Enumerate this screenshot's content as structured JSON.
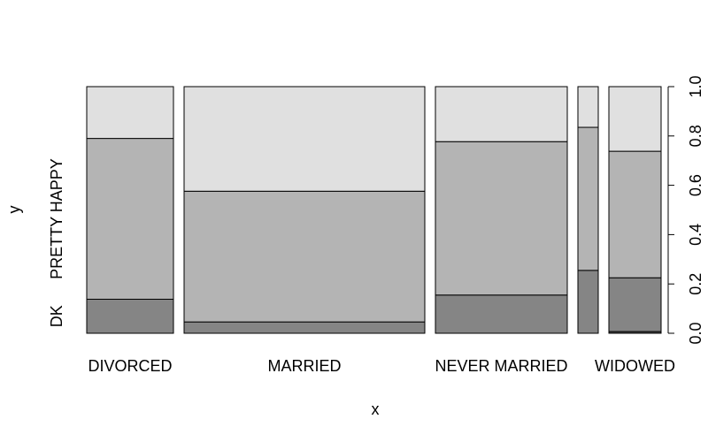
{
  "chart_data": {
    "type": "mosaic",
    "xlabel": "x",
    "ylabel": "y",
    "x_categories": [
      "DIVORCED",
      "MARRIED",
      "NEVER MARRIED",
      "",
      "WIDOWED"
    ],
    "x_widths": [
      98,
      272,
      149,
      23,
      59
    ],
    "y_tick_labels_left": [
      "DK",
      "PRETTY HAPPY"
    ],
    "y_ticks_right": [
      "0.0",
      "0.2",
      "0.4",
      "0.6",
      "0.8",
      "1.0"
    ],
    "ylim": [
      0,
      1
    ],
    "columns": [
      {
        "category": "DIVORCED",
        "segments": [
          0.138,
          0.652,
          0.21
        ]
      },
      {
        "category": "MARRIED",
        "segments": [
          0.046,
          0.53,
          0.424
        ]
      },
      {
        "category": "NEVER MARRIED",
        "segments": [
          0.155,
          0.622,
          0.223
        ]
      },
      {
        "category": "",
        "segments": [
          0.255,
          0.58,
          0.165
        ]
      },
      {
        "category": "WIDOWED",
        "segments": [
          0.007,
          0.218,
          0.513,
          0.262
        ]
      }
    ],
    "segment_colors": {
      "3": [
        "#858585",
        "#b4b4b4",
        "#e0e0e0"
      ],
      "4": [
        "#4a4a4a",
        "#858585",
        "#b4b4b4",
        "#e0e0e0"
      ]
    }
  }
}
